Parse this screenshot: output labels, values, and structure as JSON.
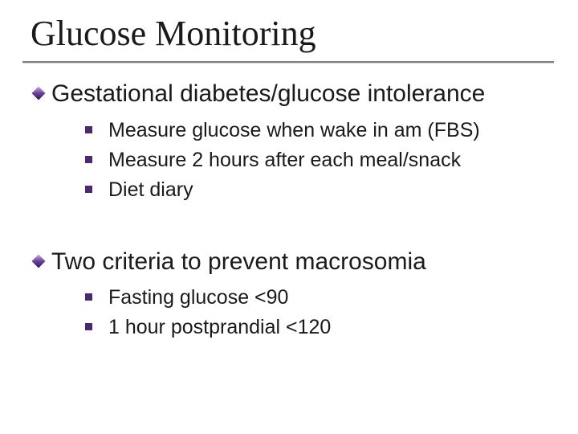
{
  "colors": {
    "title_color": "#1a1a1a",
    "body_color": "#1a1a1a",
    "diamond_bullet": "#6b3fa0",
    "square_bullet": "#4a2a6e",
    "underline": "#808080",
    "background": "#ffffff"
  },
  "typography": {
    "title_font": "Times New Roman",
    "title_size_pt": 44,
    "body_font": "Verdana",
    "level1_size_pt": 30,
    "level2_size_pt": 25
  },
  "title": "Glucose Monitoring",
  "sections": [
    {
      "heading": "Gestational diabetes/glucose intolerance",
      "items": [
        "Measure glucose when wake in am (FBS)",
        "Measure 2 hours after each meal/snack",
        "Diet diary"
      ]
    },
    {
      "heading": "Two criteria to prevent macrosomia",
      "items": [
        "Fasting glucose <90",
        "1 hour postprandial <120"
      ]
    }
  ]
}
